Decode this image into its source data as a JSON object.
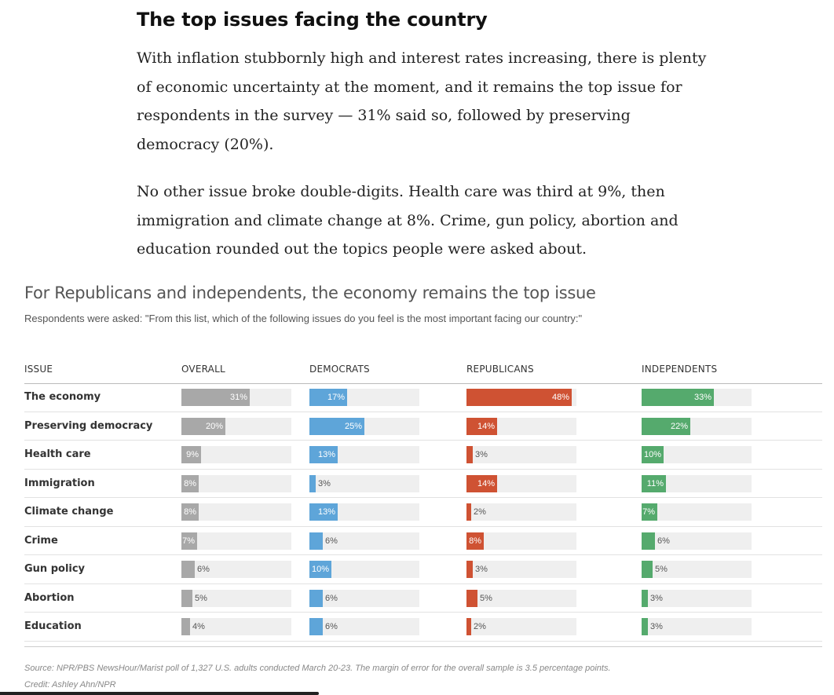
{
  "article": {
    "heading": "The top issues facing the country",
    "paragraph1": "With inflation stubbornly high and interest rates increasing, there is plenty of economic uncertainty at the moment, and it remains the top issue for respondents in the survey — 31% said so, followed by preserving democracy (20%).",
    "paragraph2": "No other issue broke double-digits. Health care was third at 9%, then immigration and climate change at 8%. Crime, gun policy, abortion and education rounded out the topics people were asked about."
  },
  "chart_data": {
    "type": "bar",
    "title": "For Republicans and independents, the economy remains the top issue",
    "subtitle": "Respondents were asked: \"From this list, which of the following issues do you feel is the most important facing our country:\"",
    "issue_header": "Issue",
    "categories": [
      "The economy",
      "Preserving democracy",
      "Health care",
      "Immigration",
      "Climate change",
      "Crime",
      "Gun policy",
      "Abortion",
      "Education"
    ],
    "value_suffix": "%",
    "xlim": [
      0,
      50
    ],
    "series": [
      {
        "name": "Overall",
        "color": "#a8a8a8",
        "values": [
          31,
          20,
          9,
          8,
          8,
          7,
          6,
          5,
          4
        ]
      },
      {
        "name": "Democrats",
        "color": "#5ea5d9",
        "values": [
          17,
          25,
          13,
          3,
          13,
          6,
          10,
          6,
          6
        ]
      },
      {
        "name": "Republicans",
        "color": "#cf5233",
        "values": [
          48,
          14,
          3,
          14,
          2,
          8,
          3,
          5,
          2
        ]
      },
      {
        "name": "Independents",
        "color": "#55aa6d",
        "values": [
          33,
          22,
          10,
          11,
          7,
          6,
          5,
          3,
          3
        ]
      }
    ],
    "track_color": "#efefef",
    "source": "Source: NPR/PBS NewsHour/Marist poll of 1,327 U.S. adults conducted March 20-23. The margin of error for the overall sample is 3.5 percentage points.",
    "credit": "Credit: Ashley Ahn/NPR"
  }
}
